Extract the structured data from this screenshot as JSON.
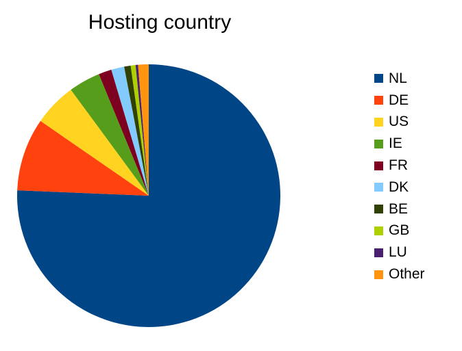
{
  "chart_data": {
    "type": "pie",
    "title": "Hosting country",
    "legend_position": "right",
    "start_angle_deg": 0,
    "direction": "clockwise",
    "slices": [
      {
        "label": "NL",
        "value": 75.8,
        "color": "#004586"
      },
      {
        "label": "DE",
        "value": 9.0,
        "color": "#ff420e"
      },
      {
        "label": "US",
        "value": 5.3,
        "color": "#ffd320"
      },
      {
        "label": "IE",
        "value": 3.9,
        "color": "#579d1c"
      },
      {
        "label": "FR",
        "value": 1.6,
        "color": "#7e0021"
      },
      {
        "label": "DK",
        "value": 1.6,
        "color": "#83caff"
      },
      {
        "label": "BE",
        "value": 0.8,
        "color": "#314004"
      },
      {
        "label": "GB",
        "value": 0.6,
        "color": "#aecf00"
      },
      {
        "label": "LU",
        "value": 0.3,
        "color": "#4b1f6f"
      },
      {
        "label": "Other",
        "value": 1.3,
        "color": "#ff950e"
      }
    ]
  }
}
